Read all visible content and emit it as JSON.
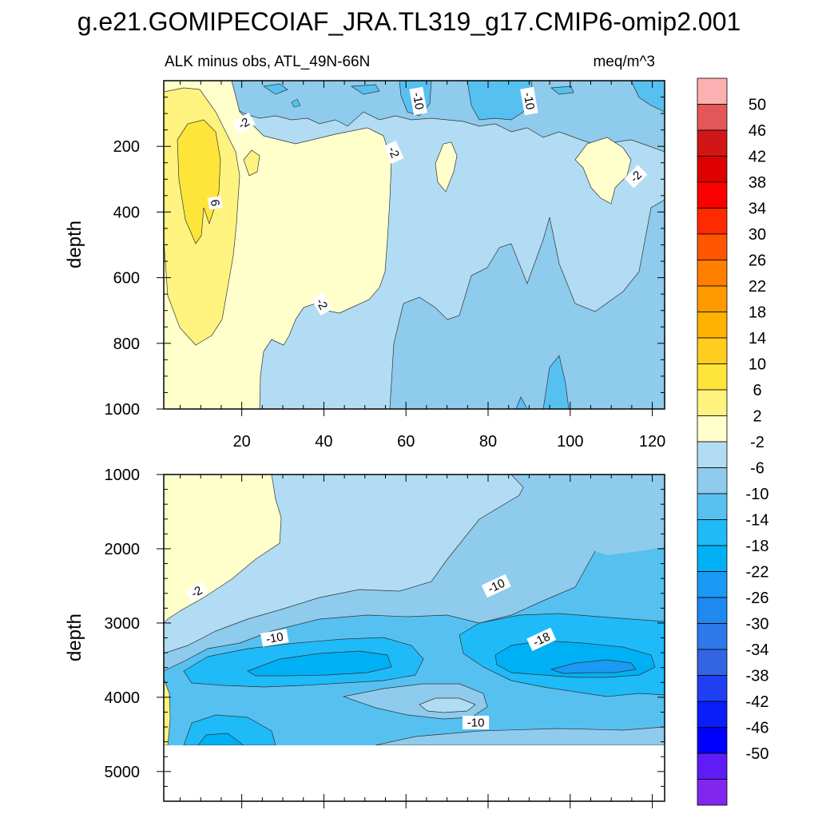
{
  "chart_data": {
    "type": "heatmap",
    "title": "g.e21.GOMIPECOIAF_JRA.TL319_g17.CMIP6-omip2.001",
    "subtitle_left": "ALK minus obs, ATL_49N-66N",
    "subtitle_right": "meq/m^3",
    "ylabel": "depth",
    "colorbar": {
      "levels": [
        50,
        46,
        42,
        38,
        34,
        30,
        26,
        22,
        18,
        14,
        10,
        6,
        2,
        -2,
        -6,
        -10,
        -14,
        -18,
        -22,
        -26,
        -30,
        -34,
        -38,
        -42,
        -46,
        -50
      ],
      "labels": [
        "50",
        "46",
        "42",
        "38",
        "34",
        "30",
        "26",
        "22",
        "18",
        "14",
        "10",
        "6",
        "2",
        "-2",
        "-6",
        "-10",
        "-14",
        "-18",
        "-22",
        "-26",
        "-30",
        "-34",
        "-38",
        "-42",
        "-46",
        "-50"
      ],
      "colors": [
        "#fbb1b2",
        "#e45758",
        "#d01616",
        "#df0000",
        "#fb0000",
        "#ff2a00",
        "#ff5500",
        "#ff7f00",
        "#ff9900",
        "#ffb300",
        "#ffcc1f",
        "#ffe539",
        "#fff380",
        "#ffffcc",
        "#b2dcf3",
        "#8ecbec",
        "#56c1f1",
        "#1fbaf8",
        "#00b0f4",
        "#1a9af5",
        "#1f89f0",
        "#2e78ea",
        "#3364e4",
        "#1f40f2",
        "#0a1ef8",
        "#0000ff",
        "#5e1cf6",
        "#8226ef"
      ]
    },
    "panels": [
      {
        "name": "upper",
        "x_ticks": [
          20,
          40,
          60,
          80,
          100,
          120
        ],
        "x_range": [
          1,
          123
        ],
        "y_ticks": [
          200,
          400,
          600,
          800,
          1000
        ],
        "y_range": [
          0,
          1000
        ],
        "contour_labels": [
          {
            "text": "-2",
            "x": 20.5,
            "y": 130,
            "rot": -30
          },
          {
            "text": "-10",
            "x": 63,
            "y": 62,
            "rot": 80
          },
          {
            "text": "-10",
            "x": 90,
            "y": 62,
            "rot": 80
          },
          {
            "text": "-2",
            "x": 57,
            "y": 218,
            "rot": 65
          },
          {
            "text": "6",
            "x": 13.5,
            "y": 372,
            "rot": 80
          },
          {
            "text": "-2",
            "x": 116,
            "y": 292,
            "rot": -45
          },
          {
            "text": "-2",
            "x": 39.5,
            "y": 680,
            "rot": 60
          }
        ]
      },
      {
        "name": "lower",
        "x_range": [
          1,
          123
        ],
        "y_ticks": [
          1000,
          2000,
          3000,
          4000,
          5000
        ],
        "y_range": [
          1000,
          5400
        ],
        "data_bottom": 4640,
        "contour_labels": [
          {
            "text": "-2",
            "x": 9,
            "y": 2580,
            "rot": -30
          },
          {
            "text": "-10",
            "x": 28,
            "y": 3200,
            "rot": -10
          },
          {
            "text": "-10",
            "x": 82,
            "y": 2500,
            "rot": -25
          },
          {
            "text": "-18",
            "x": 93,
            "y": 3220,
            "rot": -25
          },
          {
            "text": "-10",
            "x": 77,
            "y": 4340,
            "rot": 0
          }
        ]
      }
    ]
  }
}
